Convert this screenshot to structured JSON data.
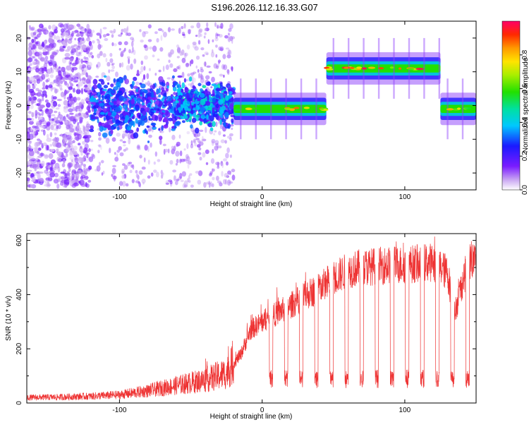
{
  "page_title": "S196.2026.112.16.33.G07",
  "chart_data": [
    {
      "type": "heatmap",
      "title": "S196.2026.112.16.33.G07",
      "xlabel": "Height of straight line (km)",
      "ylabel": "Frequency (Hz)",
      "xlim": [
        -165,
        150
      ],
      "ylim": [
        -25,
        25
      ],
      "xticks": [
        -100,
        0,
        100
      ],
      "yticks": [
        -20,
        -10,
        0,
        10,
        20
      ],
      "colorbar": {
        "label": "Normalized spectral amplitude",
        "range": [
          0,
          1
        ],
        "ticks": [
          0.0,
          0.2,
          0.4,
          0.6,
          0.8
        ]
      },
      "segments": [
        {
          "x_start": -165,
          "x_end": -120,
          "freq_center": 0,
          "amplitude": 0.08,
          "spread": 24,
          "kind": "noise"
        },
        {
          "x_start": -120,
          "x_end": -60,
          "freq_center": 0,
          "amplitude": 0.22,
          "spread": 7,
          "kind": "noisy-band"
        },
        {
          "x_start": -60,
          "x_end": -20,
          "freq_center": 0.5,
          "amplitude": 0.28,
          "spread": 5,
          "kind": "noisy-band"
        },
        {
          "x_start": -20,
          "x_end": 45,
          "freq_center": -1,
          "amplitude": 0.9,
          "spread": 1.5,
          "kind": "tone"
        },
        {
          "x_start": 45,
          "x_end": 125,
          "freq_center": 11,
          "amplitude": 0.95,
          "spread": 1.5,
          "kind": "tone"
        },
        {
          "x_start": 125,
          "x_end": 150,
          "freq_center": -1,
          "amplitude": 0.85,
          "spread": 1.5,
          "kind": "tone"
        }
      ]
    },
    {
      "type": "line",
      "xlabel": "Height of straight line (km)",
      "ylabel": "SNR (10 * v/v)",
      "xlim": [
        -165,
        150
      ],
      "ylim": [
        0,
        625
      ],
      "xticks": [
        -100,
        0,
        100
      ],
      "yticks": [
        0,
        200,
        400,
        600
      ],
      "color": "#ee3333",
      "envelope": {
        "x": [
          -165,
          -140,
          -120,
          -100,
          -80,
          -60,
          -40,
          -25,
          -15,
          -8,
          0,
          10,
          20,
          30,
          40,
          50,
          60,
          70,
          80,
          90,
          100,
          110,
          120,
          130,
          135,
          140,
          145,
          150
        ],
        "y": [
          20,
          22,
          25,
          30,
          45,
          65,
          85,
          110,
          180,
          270,
          300,
          330,
          360,
          395,
          425,
          460,
          490,
          500,
          505,
          510,
          510,
          515,
          520,
          480,
          330,
          440,
          520,
          530
        ]
      },
      "dips": {
        "start": 5,
        "end": 148,
        "spacing": 10.6,
        "width": 2.5,
        "floor": 100
      }
    }
  ]
}
